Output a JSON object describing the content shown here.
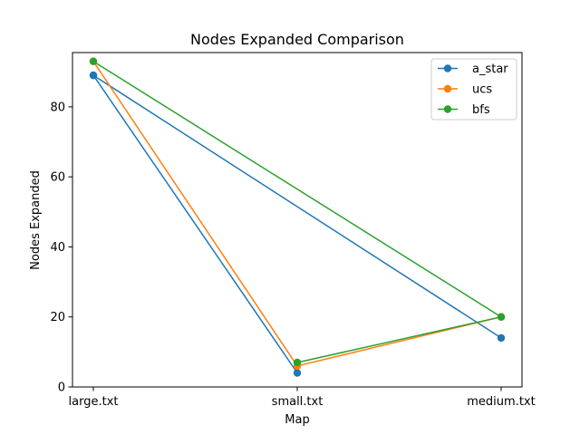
{
  "chart_data": {
    "type": "line",
    "title": "Nodes Expanded Comparison",
    "xlabel": "Map",
    "ylabel": "Nodes Expanded",
    "ylim": [
      0,
      95.5
    ],
    "y_ticks": [
      0,
      20,
      40,
      60,
      80
    ],
    "grid": false,
    "legend_position": "top-right",
    "x_ticks": [
      "large.txt",
      "small.txt",
      "medium.txt"
    ],
    "series": [
      {
        "name": "a_star",
        "color": "#1f77b4",
        "points": [
          {
            "x": "large.txt",
            "y": 89
          },
          {
            "x": "small.txt",
            "y": 4
          },
          {
            "x": "large.txt",
            "y": 89
          },
          {
            "x": "medium.txt",
            "y": 14
          }
        ]
      },
      {
        "name": "ucs",
        "color": "#ff7f0e",
        "points": [
          {
            "x": "large.txt",
            "y": 93
          },
          {
            "x": "small.txt",
            "y": 6
          },
          {
            "x": "medium.txt",
            "y": 20
          }
        ]
      },
      {
        "name": "bfs",
        "color": "#2ca02c",
        "points": [
          {
            "x": "large.txt",
            "y": 93
          },
          {
            "x": "medium.txt",
            "y": 20
          },
          {
            "x": "small.txt",
            "y": 7
          }
        ]
      }
    ]
  }
}
